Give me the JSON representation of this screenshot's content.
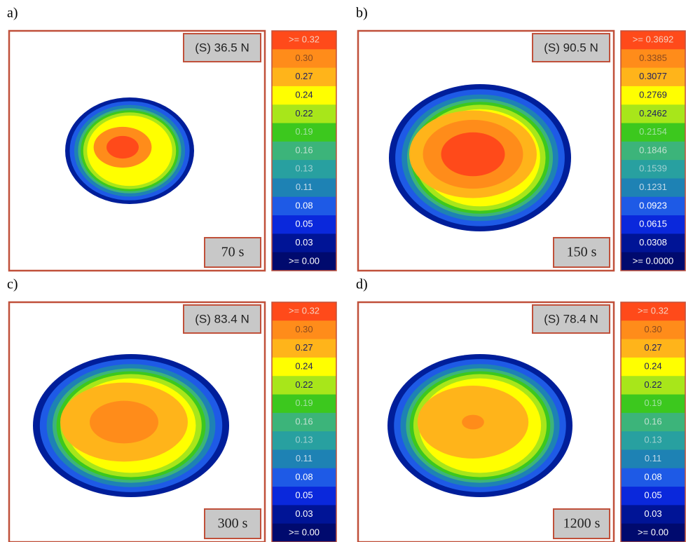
{
  "panels": [
    {
      "label": "a)",
      "force": "(S) 36.5 N",
      "time": "70 s",
      "scale": [
        ">= 0.32",
        "0.30",
        "0.27",
        "0.24",
        "0.22",
        "0.19",
        "0.16",
        "0.13",
        "0.11",
        "0.08",
        "0.05",
        "0.03",
        ">= 0.00"
      ]
    },
    {
      "label": "b)",
      "force": "(S) 90.5 N",
      "time": "150 s",
      "scale": [
        ">= 0.3692",
        "0.3385",
        "0.3077",
        "0.2769",
        "0.2462",
        "0.2154",
        "0.1846",
        "0.1539",
        "0.1231",
        "0.0923",
        "0.0615",
        "0.0308",
        ">= 0.0000"
      ]
    },
    {
      "label": "c)",
      "force": "(S) 83.4 N",
      "time": "300 s",
      "scale": [
        ">= 0.32",
        "0.30",
        "0.27",
        "0.24",
        "0.22",
        "0.19",
        "0.16",
        "0.13",
        "0.11",
        "0.08",
        "0.05",
        "0.03",
        ">= 0.00"
      ]
    },
    {
      "label": "d)",
      "force": "(S) 78.4 N",
      "time": "1200 s",
      "scale": [
        ">= 0.32",
        "0.30",
        "0.27",
        "0.24",
        "0.22",
        "0.19",
        "0.16",
        "0.13",
        "0.11",
        "0.08",
        "0.05",
        "0.03",
        ">= 0.00"
      ]
    }
  ]
}
